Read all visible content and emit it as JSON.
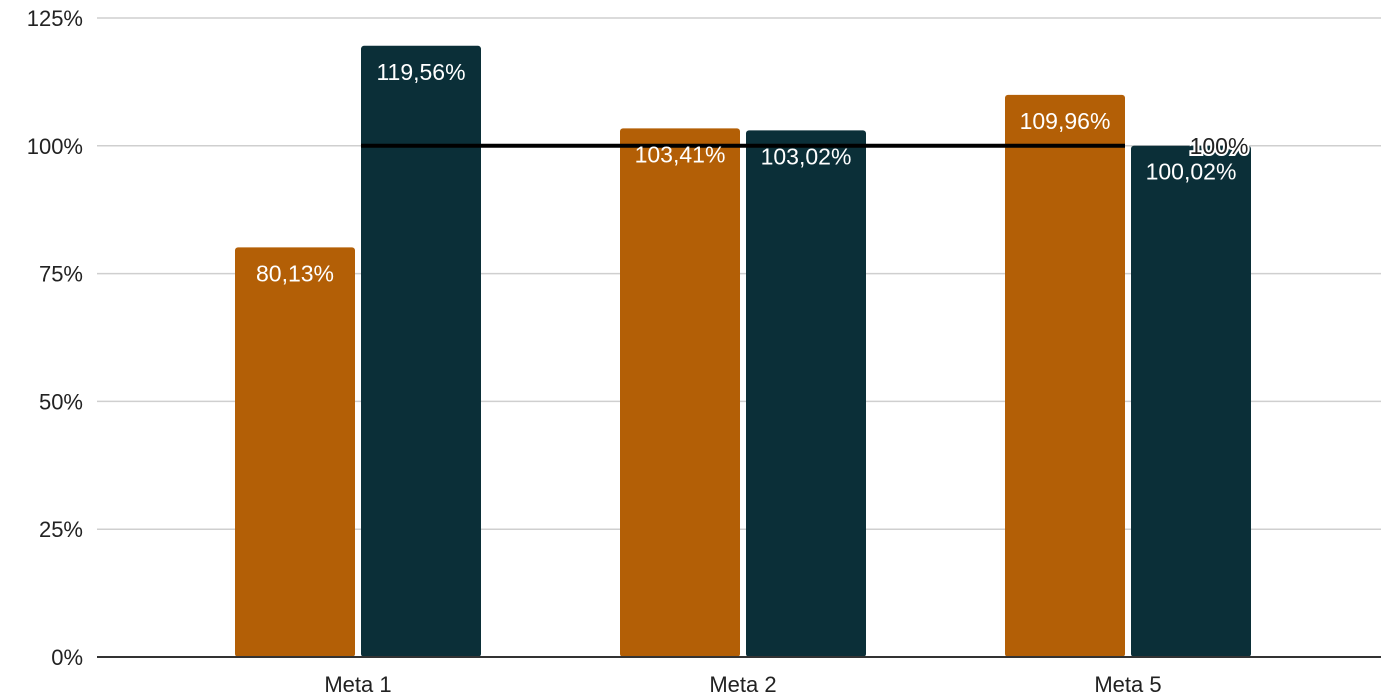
{
  "chart_data": {
    "type": "bar",
    "title": "",
    "xlabel": "",
    "ylabel": "",
    "categories": [
      "Meta 1",
      "Meta 2",
      "Meta 5"
    ],
    "series": [
      {
        "values": [
          80.13,
          103.41,
          109.96
        ],
        "labels": [
          "80,13%",
          "103,41%",
          "109,96%"
        ],
        "color": "#B35F06"
      },
      {
        "values": [
          119.56,
          103.02,
          100.02
        ],
        "labels": [
          "119,56%",
          "103,02%",
          "100,02%"
        ],
        "color": "#0B2F38"
      }
    ],
    "reference_line": {
      "value": 100,
      "label": "100%",
      "color": "#000000"
    },
    "ylim": [
      0,
      125
    ],
    "yticks": [
      0,
      25,
      50,
      75,
      100,
      125
    ],
    "ytick_labels": [
      "0%",
      "25%",
      "50%",
      "75%",
      "100%",
      "125%"
    ],
    "grid": true,
    "legend": "none"
  }
}
